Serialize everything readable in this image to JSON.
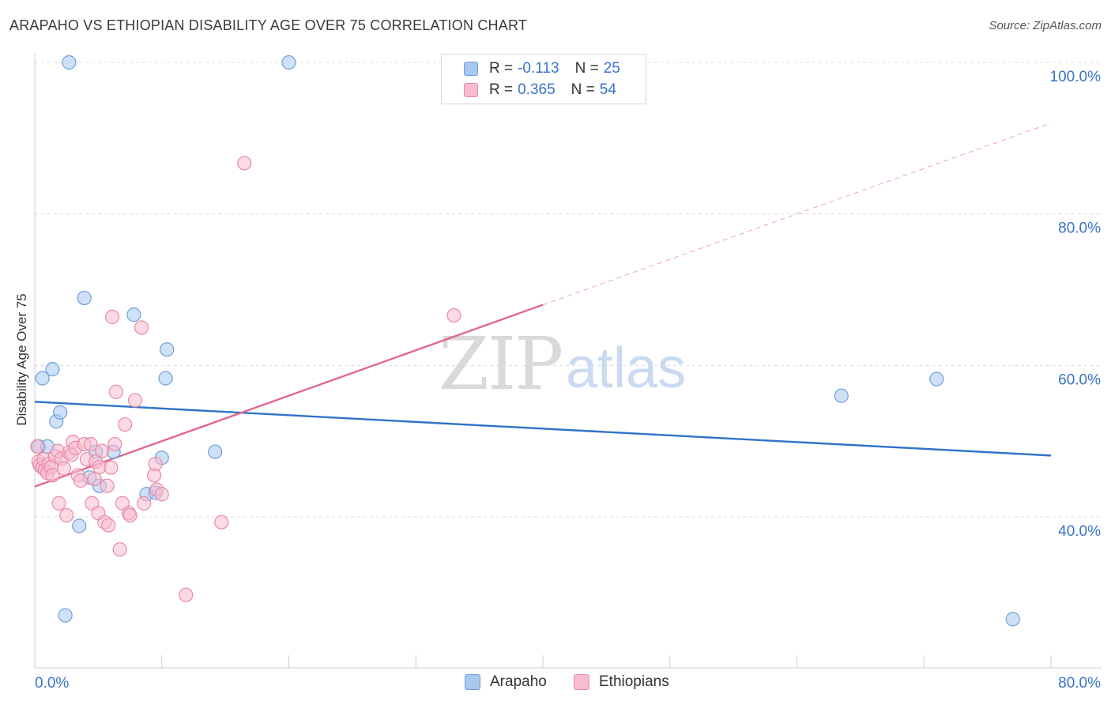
{
  "header": {
    "title": "ARAPAHO VS ETHIOPIAN DISABILITY AGE OVER 75 CORRELATION CHART",
    "source": "Source: ZipAtlas.com"
  },
  "watermark": {
    "zip": "ZIP",
    "atlas": "atlas"
  },
  "legend": {
    "rows": [
      {
        "r_label": "R =",
        "r_value": "-0.113",
        "n_label": "N =",
        "n_value": "25",
        "color": "#a8c8f0",
        "border": "#6f9fd8"
      },
      {
        "r_label": "R =",
        "r_value": "0.365",
        "n_label": "N =",
        "n_value": "54",
        "color": "#f8bcd0",
        "border": "#e88aa8"
      }
    ]
  },
  "bottom_legend": {
    "arapaho": "Arapaho",
    "ethiopians": "Ethiopians"
  },
  "chart_data": {
    "type": "scatter",
    "title": "ARAPAHO VS ETHIOPIAN DISABILITY AGE OVER 75 CORRELATION CHART",
    "xlabel": "",
    "ylabel": "Disability Age Over 75",
    "xlim": [
      0,
      80
    ],
    "ylim": [
      20,
      102
    ],
    "x_tick_labels": [
      "0.0%",
      "80.0%"
    ],
    "y_ticks": [
      40,
      60,
      80,
      100
    ],
    "y_tick_labels": [
      "40.0%",
      "60.0%",
      "80.0%",
      "100.0%"
    ],
    "grid": true,
    "series": [
      {
        "name": "Arapaho",
        "color": "#a8c8f0",
        "stroke": "#6f9fd8",
        "points": [
          [
            0.3,
            49.3
          ],
          [
            0.6,
            58.3
          ],
          [
            1.0,
            49.3
          ],
          [
            1.4,
            59.5
          ],
          [
            1.7,
            52.6
          ],
          [
            2.0,
            53.8
          ],
          [
            2.4,
            27.0
          ],
          [
            2.7,
            100.0
          ],
          [
            3.5,
            38.8
          ],
          [
            3.9,
            68.9
          ],
          [
            4.3,
            45.2
          ],
          [
            4.8,
            48.6
          ],
          [
            5.1,
            44.1
          ],
          [
            6.2,
            48.6
          ],
          [
            7.8,
            66.7
          ],
          [
            8.8,
            43.0
          ],
          [
            9.5,
            43.2
          ],
          [
            10.0,
            47.8
          ],
          [
            10.3,
            58.3
          ],
          [
            10.4,
            62.1
          ],
          [
            14.2,
            48.6
          ],
          [
            20.0,
            100.0
          ],
          [
            63.5,
            56.0
          ],
          [
            71.0,
            58.2
          ],
          [
            77.0,
            26.5
          ]
        ]
      },
      {
        "name": "Ethiopians",
        "color": "#f8bcd0",
        "stroke": "#e88aa8",
        "points": [
          [
            0.2,
            49.3
          ],
          [
            0.3,
            47.3
          ],
          [
            0.4,
            46.8
          ],
          [
            0.6,
            46.5
          ],
          [
            0.7,
            47.6
          ],
          [
            0.8,
            46.2
          ],
          [
            1.0,
            45.8
          ],
          [
            1.1,
            47.0
          ],
          [
            1.3,
            46.6
          ],
          [
            1.4,
            45.5
          ],
          [
            1.6,
            48.0
          ],
          [
            1.8,
            48.7
          ],
          [
            1.9,
            41.8
          ],
          [
            2.1,
            47.7
          ],
          [
            2.3,
            46.4
          ],
          [
            2.5,
            40.2
          ],
          [
            2.7,
            48.5
          ],
          [
            2.9,
            48.2
          ],
          [
            3.0,
            49.9
          ],
          [
            3.2,
            49.1
          ],
          [
            3.4,
            45.5
          ],
          [
            3.6,
            44.8
          ],
          [
            3.9,
            49.6
          ],
          [
            4.1,
            47.6
          ],
          [
            4.4,
            49.6
          ],
          [
            4.5,
            41.8
          ],
          [
            4.7,
            45.0
          ],
          [
            4.8,
            47.3
          ],
          [
            5.0,
            40.5
          ],
          [
            5.1,
            46.6
          ],
          [
            5.3,
            48.7
          ],
          [
            5.5,
            39.3
          ],
          [
            5.7,
            44.1
          ],
          [
            5.8,
            38.9
          ],
          [
            6.0,
            46.5
          ],
          [
            6.1,
            66.4
          ],
          [
            6.3,
            49.6
          ],
          [
            6.4,
            56.5
          ],
          [
            6.7,
            35.7
          ],
          [
            6.9,
            41.8
          ],
          [
            7.1,
            52.2
          ],
          [
            7.4,
            40.5
          ],
          [
            7.5,
            40.2
          ],
          [
            7.9,
            55.4
          ],
          [
            8.4,
            65.0
          ],
          [
            8.6,
            41.8
          ],
          [
            9.4,
            45.5
          ],
          [
            9.5,
            47.0
          ],
          [
            9.6,
            43.6
          ],
          [
            10.0,
            43.0
          ],
          [
            11.9,
            29.7
          ],
          [
            14.7,
            39.3
          ],
          [
            16.5,
            86.7
          ],
          [
            33.0,
            66.6
          ]
        ]
      }
    ],
    "trend_lines": [
      {
        "series": "Arapaho",
        "from": [
          0,
          55.2
        ],
        "to": [
          80,
          48.1
        ],
        "style": "solid"
      },
      {
        "series": "Ethiopians",
        "from": [
          0,
          44.0
        ],
        "to": [
          40,
          68.0
        ],
        "style": "solid"
      },
      {
        "series": "Ethiopians",
        "from": [
          40,
          68.0
        ],
        "to": [
          80,
          92.0
        ],
        "style": "dashed"
      }
    ]
  }
}
